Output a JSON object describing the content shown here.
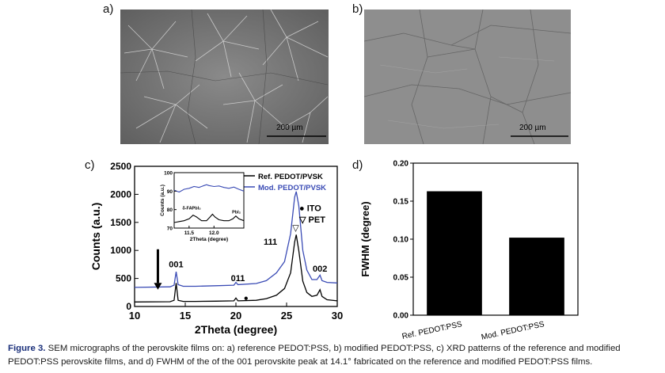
{
  "panels": {
    "a": {
      "label": "a)",
      "scale_bar": "200 µm"
    },
    "b": {
      "label": "b)",
      "scale_bar": "200 µm"
    },
    "c": {
      "label": "c)"
    },
    "d": {
      "label": "d)"
    }
  },
  "chart_data": [
    {
      "type": "line",
      "panel": "c",
      "xlabel": "2Theta (degree)",
      "ylabel": "Counts (a.u.)",
      "xlim": [
        10,
        30
      ],
      "ylim": [
        0,
        2500
      ],
      "xticks": [
        "10",
        "15",
        "20",
        "25",
        "30"
      ],
      "yticks": [
        "0",
        "500",
        "1000",
        "1500",
        "2000",
        "2500"
      ],
      "legend_position": "top-right",
      "series": [
        {
          "name": "Ref. PEDOT/PVSK",
          "color": "#000000",
          "points": [
            [
              10,
              80
            ],
            [
              13.5,
              85
            ],
            [
              13.9,
              110
            ],
            [
              14.1,
              420
            ],
            [
              14.3,
              110
            ],
            [
              14.8,
              90
            ],
            [
              16,
              90
            ],
            [
              18,
              95
            ],
            [
              19.8,
              100
            ],
            [
              20.0,
              150
            ],
            [
              20.2,
              100
            ],
            [
              22,
              110
            ],
            [
              23,
              140
            ],
            [
              24,
              200
            ],
            [
              24.8,
              320
            ],
            [
              25.4,
              600
            ],
            [
              25.8,
              1150
            ],
            [
              25.95,
              1280
            ],
            [
              26.2,
              1000
            ],
            [
              26.6,
              450
            ],
            [
              27,
              250
            ],
            [
              27.5,
              180
            ],
            [
              28.0,
              200
            ],
            [
              28.3,
              300
            ],
            [
              28.5,
              180
            ],
            [
              29,
              120
            ],
            [
              30,
              100
            ]
          ]
        },
        {
          "name": "Mod. PEDOT/PVSK",
          "color": "#3a4bb5",
          "points": [
            [
              10,
              340
            ],
            [
              13.5,
              350
            ],
            [
              13.9,
              380
            ],
            [
              14.1,
              620
            ],
            [
              14.3,
              390
            ],
            [
              14.8,
              360
            ],
            [
              16,
              360
            ],
            [
              18,
              370
            ],
            [
              19.8,
              380
            ],
            [
              20.0,
              430
            ],
            [
              20.2,
              390
            ],
            [
              22,
              410
            ],
            [
              23,
              460
            ],
            [
              24,
              600
            ],
            [
              24.8,
              800
            ],
            [
              25.4,
              1300
            ],
            [
              25.8,
              1950
            ],
            [
              25.95,
              2050
            ],
            [
              26.2,
              1800
            ],
            [
              26.6,
              1000
            ],
            [
              27,
              650
            ],
            [
              27.5,
              480
            ],
            [
              28.0,
              480
            ],
            [
              28.3,
              560
            ],
            [
              28.5,
              460
            ],
            [
              29,
              430
            ],
            [
              30,
              420
            ]
          ]
        }
      ],
      "annotations": [
        {
          "text": "001",
          "x": 14.1,
          "y": 700
        },
        {
          "text": "011",
          "x": 20.2,
          "y": 450
        },
        {
          "text": "111",
          "x": 23.4,
          "y": 1100
        },
        {
          "text": "002",
          "x": 28.3,
          "y": 620
        }
      ],
      "markers": {
        "ito": {
          "symbol": "●",
          "label": "ITO",
          "x": 21.0,
          "y": 160
        },
        "pet": {
          "symbol": "▽",
          "label": "PET",
          "x": 25.9,
          "y": 1420
        }
      },
      "inset": {
        "xlabel": "2Theta (degree)",
        "ylabel": "Counts (a.u.)",
        "xlim": [
          11.2,
          12.6
        ],
        "ylim": [
          70,
          100
        ],
        "xticks": [
          "11.5",
          "12.0"
        ],
        "yticks": [
          "70",
          "80",
          "90",
          "100"
        ],
        "labels": [
          {
            "text": "δ-FAPbI₃",
            "x": 11.55,
            "y": 80
          },
          {
            "text": "PbI₂",
            "x": 12.45,
            "y": 78
          }
        ],
        "series": [
          {
            "name": "Ref. PEDOT/PVSK",
            "color": "#000000",
            "points": [
              [
                11.2,
                73
              ],
              [
                11.3,
                73.5
              ],
              [
                11.4,
                74
              ],
              [
                11.5,
                75
              ],
              [
                11.58,
                77
              ],
              [
                11.65,
                76
              ],
              [
                11.7,
                75
              ],
              [
                11.75,
                74
              ],
              [
                11.85,
                74
              ],
              [
                11.92,
                76
              ],
              [
                11.97,
                77.5
              ],
              [
                12.02,
                76
              ],
              [
                12.1,
                74.5
              ],
              [
                12.2,
                74
              ],
              [
                12.3,
                74
              ],
              [
                12.38,
                75
              ],
              [
                12.44,
                76.5
              ],
              [
                12.5,
                75
              ],
              [
                12.6,
                74
              ]
            ]
          },
          {
            "name": "Mod. PEDOT/PVSK",
            "color": "#3a4bb5",
            "points": [
              [
                11.2,
                90.5
              ],
              [
                11.3,
                89.5
              ],
              [
                11.4,
                91
              ],
              [
                11.5,
                91.5
              ],
              [
                11.6,
                92.5
              ],
              [
                11.7,
                92
              ],
              [
                11.8,
                93
              ],
              [
                11.85,
                93.5
              ],
              [
                11.9,
                93
              ],
              [
                12.0,
                92.5
              ],
              [
                12.1,
                92.8
              ],
              [
                12.2,
                92
              ],
              [
                12.3,
                91.5
              ],
              [
                12.4,
                92.2
              ],
              [
                12.5,
                91
              ],
              [
                12.6,
                90
              ]
            ]
          }
        ]
      }
    },
    {
      "type": "bar",
      "panel": "d",
      "categories": [
        "Ref. PEDOT:PSS",
        "Mod. PEDOT:PSS"
      ],
      "values": [
        0.163,
        0.102
      ],
      "ylabel": "FWHM (degree)",
      "xlabel": "",
      "ylim": [
        0,
        0.2
      ],
      "yticks": [
        "0.00",
        "0.05",
        "0.10",
        "0.15",
        "0.20"
      ],
      "bar_color": "#000000"
    }
  ],
  "caption": {
    "label": "Figure 3.",
    "text": " SEM micrographs of the perovskite films on: a) reference PEDOT:PSS, b) modified PEDOT:PSS, c) XRD patterns of the reference and modified PEDOT:PSS perovskite films, and d) FWHM of the of the 001 perovskite peak at 14.1° fabricated on the reference and modified PEDOT:PSS films."
  }
}
